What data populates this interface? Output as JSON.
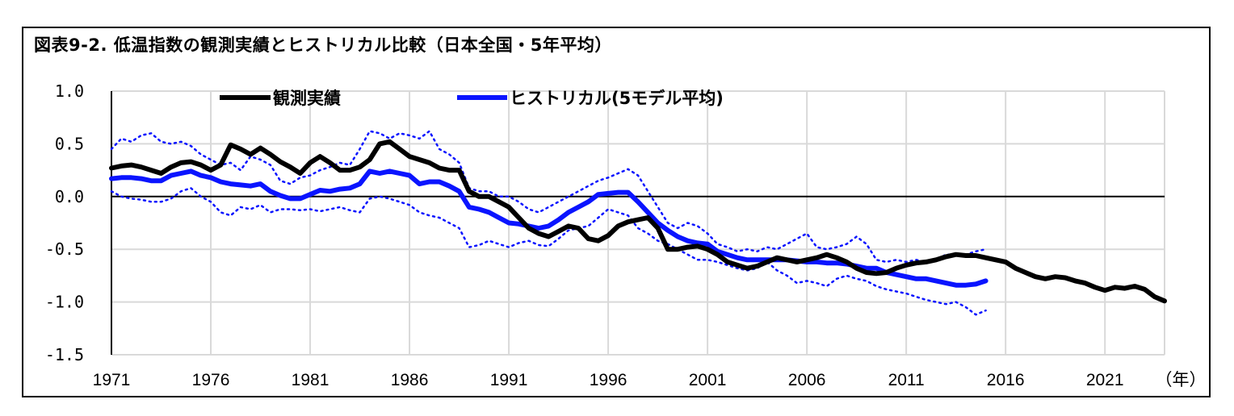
{
  "title": "図表9-2. 低温指数の観測実績とヒストリカル比較（日本全国・5年平均）",
  "chart_data": {
    "type": "line",
    "title": "図表9-2. 低温指数の観測実績とヒストリカル比較（日本全国・5年平均）",
    "xlabel": "（年）",
    "ylabel": "",
    "xlim": [
      1971,
      2024
    ],
    "ylim": [
      -1.5,
      1.0
    ],
    "x_ticks": [
      "1971",
      "1976",
      "1981",
      "1986",
      "1991",
      "1996",
      "2001",
      "2006",
      "2011",
      "2016",
      "2021"
    ],
    "y_ticks": [
      "1.0",
      "0.5",
      "0.0",
      "-0.5",
      "-1.0",
      "-1.5"
    ],
    "grid": true,
    "legend_position": "top",
    "colors": {
      "observed": "#000000",
      "historical": "#0a14ff",
      "band": "#0a14ff",
      "grid": "#d9d9d9",
      "zero": "#000000"
    },
    "series": [
      {
        "name": "観測実績",
        "style": "solid-thick",
        "x": [
          1971,
          1971.5,
          1972,
          1972.5,
          1973,
          1973.5,
          1974,
          1974.5,
          1975,
          1975.5,
          1976,
          1976.5,
          1977,
          1977.5,
          1978,
          1978.5,
          1979,
          1979.5,
          1980,
          1980.5,
          1981,
          1981.5,
          1982,
          1982.5,
          1983,
          1983.5,
          1984,
          1984.5,
          1985,
          1985.5,
          1986,
          1986.5,
          1987,
          1987.5,
          1988,
          1988.5,
          1989,
          1989.5,
          1990,
          1990.5,
          1991,
          1991.5,
          1992,
          1992.5,
          1993,
          1993.5,
          1994,
          1994.5,
          1995,
          1995.5,
          1996,
          1996.5,
          1997,
          1997.5,
          1998,
          1998.5,
          1999,
          1999.5,
          2000,
          2000.5,
          2001,
          2001.5,
          2002,
          2002.5,
          2003,
          2003.5,
          2004,
          2004.5,
          2005,
          2005.5,
          2006,
          2006.5,
          2007,
          2007.5,
          2008,
          2008.5,
          2009,
          2009.5,
          2010,
          2010.5,
          2011,
          2011.5,
          2012,
          2012.5,
          2013,
          2013.5,
          2014,
          2014.5,
          2015,
          2015.5,
          2016,
          2016.5,
          2017,
          2017.5,
          2018,
          2018.5,
          2019,
          2019.5,
          2020,
          2020.5,
          2021,
          2021.5,
          2022,
          2022.5,
          2023,
          2023.5,
          2024
        ],
        "values": [
          0.27,
          0.29,
          0.3,
          0.28,
          0.25,
          0.22,
          0.28,
          0.32,
          0.33,
          0.3,
          0.25,
          0.3,
          0.49,
          0.45,
          0.4,
          0.46,
          0.4,
          0.33,
          0.28,
          0.22,
          0.32,
          0.38,
          0.32,
          0.25,
          0.25,
          0.28,
          0.35,
          0.5,
          0.52,
          0.45,
          0.38,
          0.35,
          0.32,
          0.27,
          0.25,
          0.25,
          0.05,
          0.0,
          0.0,
          -0.05,
          -0.1,
          -0.2,
          -0.3,
          -0.35,
          -0.38,
          -0.33,
          -0.28,
          -0.3,
          -0.4,
          -0.42,
          -0.37,
          -0.28,
          -0.24,
          -0.22,
          -0.2,
          -0.3,
          -0.5,
          -0.5,
          -0.48,
          -0.47,
          -0.5,
          -0.55,
          -0.62,
          -0.65,
          -0.68,
          -0.66,
          -0.62,
          -0.58,
          -0.6,
          -0.62,
          -0.6,
          -0.58,
          -0.55,
          -0.58,
          -0.62,
          -0.68,
          -0.72,
          -0.73,
          -0.72,
          -0.68,
          -0.65,
          -0.63,
          -0.62,
          -0.6,
          -0.57,
          -0.55,
          -0.56,
          -0.56,
          -0.58,
          -0.6,
          -0.62,
          -0.68,
          -0.72,
          -0.76,
          -0.78,
          -0.76,
          -0.77,
          -0.8,
          -0.82,
          -0.86,
          -0.89,
          -0.86,
          -0.87,
          -0.85,
          -0.88,
          -0.95,
          -0.99
        ]
      },
      {
        "name": "ヒストリカル(5モデル平均)",
        "style": "solid-thick",
        "x": [
          1971,
          1971.5,
          1972,
          1972.5,
          1973,
          1973.5,
          1974,
          1974.5,
          1975,
          1975.5,
          1976,
          1976.5,
          1977,
          1977.5,
          1978,
          1978.5,
          1979,
          1979.5,
          1980,
          1980.5,
          1981,
          1981.5,
          1982,
          1982.5,
          1983,
          1983.5,
          1984,
          1984.5,
          1985,
          1985.5,
          1986,
          1986.5,
          1987,
          1987.5,
          1988,
          1988.5,
          1989,
          1989.5,
          1990,
          1990.5,
          1991,
          1991.5,
          1992,
          1992.5,
          1993,
          1993.5,
          1994,
          1994.5,
          1995,
          1995.5,
          1996,
          1996.5,
          1997,
          1997.5,
          1998,
          1998.5,
          1999,
          1999.5,
          2000,
          2000.5,
          2001,
          2001.5,
          2002,
          2002.5,
          2003,
          2003.5,
          2004,
          2004.5,
          2005,
          2005.5,
          2006,
          2006.5,
          2007,
          2007.5,
          2008,
          2008.5,
          2009,
          2009.5,
          2010,
          2010.5,
          2011,
          2011.5,
          2012,
          2012.5,
          2013,
          2013.5,
          2014,
          2014.5,
          2015
        ],
        "values": [
          0.17,
          0.18,
          0.18,
          0.17,
          0.15,
          0.15,
          0.2,
          0.22,
          0.24,
          0.2,
          0.18,
          0.14,
          0.12,
          0.11,
          0.1,
          0.12,
          0.05,
          0.01,
          -0.02,
          -0.02,
          0.02,
          0.06,
          0.05,
          0.07,
          0.08,
          0.12,
          0.24,
          0.22,
          0.24,
          0.22,
          0.2,
          0.12,
          0.14,
          0.14,
          0.1,
          0.05,
          -0.1,
          -0.12,
          -0.15,
          -0.2,
          -0.25,
          -0.26,
          -0.28,
          -0.3,
          -0.28,
          -0.22,
          -0.15,
          -0.1,
          -0.05,
          0.02,
          0.03,
          0.04,
          0.04,
          -0.05,
          -0.15,
          -0.25,
          -0.32,
          -0.38,
          -0.42,
          -0.44,
          -0.45,
          -0.52,
          -0.55,
          -0.58,
          -0.6,
          -0.6,
          -0.6,
          -0.6,
          -0.6,
          -0.61,
          -0.62,
          -0.62,
          -0.63,
          -0.63,
          -0.64,
          -0.66,
          -0.68,
          -0.68,
          -0.72,
          -0.74,
          -0.76,
          -0.78,
          -0.78,
          -0.8,
          -0.82,
          -0.84,
          -0.84,
          -0.83,
          -0.8
        ]
      },
      {
        "name": "",
        "style": "dotted",
        "x": [
          1971,
          1971.5,
          1972,
          1972.5,
          1973,
          1973.5,
          1974,
          1974.5,
          1975,
          1975.5,
          1976,
          1976.5,
          1977,
          1977.5,
          1978,
          1978.5,
          1979,
          1979.5,
          1980,
          1980.5,
          1981,
          1981.5,
          1982,
          1982.5,
          1983,
          1983.5,
          1984,
          1984.5,
          1985,
          1985.5,
          1986,
          1986.5,
          1987,
          1987.5,
          1988,
          1988.5,
          1989,
          1989.5,
          1990,
          1990.5,
          1991,
          1991.5,
          1992,
          1992.5,
          1993,
          1993.5,
          1994,
          1994.5,
          1995,
          1995.5,
          1996,
          1996.5,
          1997,
          1997.5,
          1998,
          1998.5,
          1999,
          1999.5,
          2000,
          2000.5,
          2001,
          2001.5,
          2002,
          2002.5,
          2003,
          2003.5,
          2004,
          2004.5,
          2005,
          2005.5,
          2006,
          2006.5,
          2007,
          2007.5,
          2008,
          2008.5,
          2009,
          2009.5,
          2010,
          2010.5,
          2011,
          2011.5,
          2012,
          2012.5,
          2013,
          2013.5,
          2014,
          2014.5,
          2015
        ],
        "values": [
          0.45,
          0.55,
          0.52,
          0.58,
          0.6,
          0.52,
          0.5,
          0.52,
          0.48,
          0.4,
          0.35,
          0.3,
          0.32,
          0.25,
          0.38,
          0.35,
          0.3,
          0.15,
          0.12,
          0.18,
          0.2,
          0.25,
          0.28,
          0.32,
          0.3,
          0.45,
          0.62,
          0.6,
          0.55,
          0.6,
          0.58,
          0.55,
          0.62,
          0.45,
          0.4,
          0.32,
          0.08,
          0.05,
          0.05,
          0.0,
          0.0,
          -0.05,
          -0.12,
          -0.15,
          -0.1,
          -0.05,
          0.0,
          0.05,
          0.1,
          0.15,
          0.18,
          0.22,
          0.26,
          0.2,
          0.05,
          -0.1,
          -0.25,
          -0.3,
          -0.25,
          -0.28,
          -0.35,
          -0.45,
          -0.48,
          -0.52,
          -0.5,
          -0.52,
          -0.48,
          -0.5,
          -0.45,
          -0.4,
          -0.35,
          -0.48,
          -0.5,
          -0.48,
          -0.45,
          -0.38,
          -0.45,
          -0.6,
          -0.62,
          -0.6,
          -0.62,
          -0.6,
          -0.62,
          -0.6,
          -0.55,
          -0.55,
          -0.55,
          -0.52,
          -0.5
        ]
      },
      {
        "name": "",
        "style": "dotted",
        "x": [
          1971,
          1971.5,
          1972,
          1972.5,
          1973,
          1973.5,
          1974,
          1974.5,
          1975,
          1975.5,
          1976,
          1976.5,
          1977,
          1977.5,
          1978,
          1978.5,
          1979,
          1979.5,
          1980,
          1980.5,
          1981,
          1981.5,
          1982,
          1982.5,
          1983,
          1983.5,
          1984,
          1984.5,
          1985,
          1985.5,
          1986,
          1986.5,
          1987,
          1987.5,
          1988,
          1988.5,
          1989,
          1989.5,
          1990,
          1990.5,
          1991,
          1991.5,
          1992,
          1992.5,
          1993,
          1993.5,
          1994,
          1994.5,
          1995,
          1995.5,
          1996,
          1996.5,
          1997,
          1997.5,
          1998,
          1998.5,
          1999,
          1999.5,
          2000,
          2000.5,
          2001,
          2001.5,
          2002,
          2002.5,
          2003,
          2003.5,
          2004,
          2004.5,
          2005,
          2005.5,
          2006,
          2006.5,
          2007,
          2007.5,
          2008,
          2008.5,
          2009,
          2009.5,
          2010,
          2010.5,
          2011,
          2011.5,
          2012,
          2012.5,
          2013,
          2013.5,
          2014,
          2014.5,
          2015
        ],
        "values": [
          0.05,
          0.0,
          -0.02,
          -0.03,
          -0.05,
          -0.05,
          -0.02,
          0.05,
          0.08,
          0.0,
          -0.05,
          -0.15,
          -0.18,
          -0.1,
          -0.12,
          -0.08,
          -0.15,
          -0.12,
          -0.12,
          -0.13,
          -0.12,
          -0.14,
          -0.12,
          -0.1,
          -0.13,
          -0.15,
          -0.02,
          0.0,
          -0.02,
          -0.05,
          -0.08,
          -0.15,
          -0.18,
          -0.2,
          -0.25,
          -0.3,
          -0.48,
          -0.46,
          -0.42,
          -0.45,
          -0.48,
          -0.44,
          -0.42,
          -0.46,
          -0.47,
          -0.4,
          -0.32,
          -0.3,
          -0.28,
          -0.2,
          -0.12,
          -0.15,
          -0.18,
          -0.3,
          -0.35,
          -0.42,
          -0.45,
          -0.5,
          -0.55,
          -0.6,
          -0.6,
          -0.62,
          -0.65,
          -0.68,
          -0.7,
          -0.68,
          -0.62,
          -0.7,
          -0.75,
          -0.82,
          -0.8,
          -0.82,
          -0.85,
          -0.78,
          -0.75,
          -0.78,
          -0.8,
          -0.85,
          -0.88,
          -0.9,
          -0.92,
          -0.95,
          -0.98,
          -1.0,
          -1.02,
          -1.0,
          -1.05,
          -1.12,
          -1.08
        ]
      }
    ]
  }
}
